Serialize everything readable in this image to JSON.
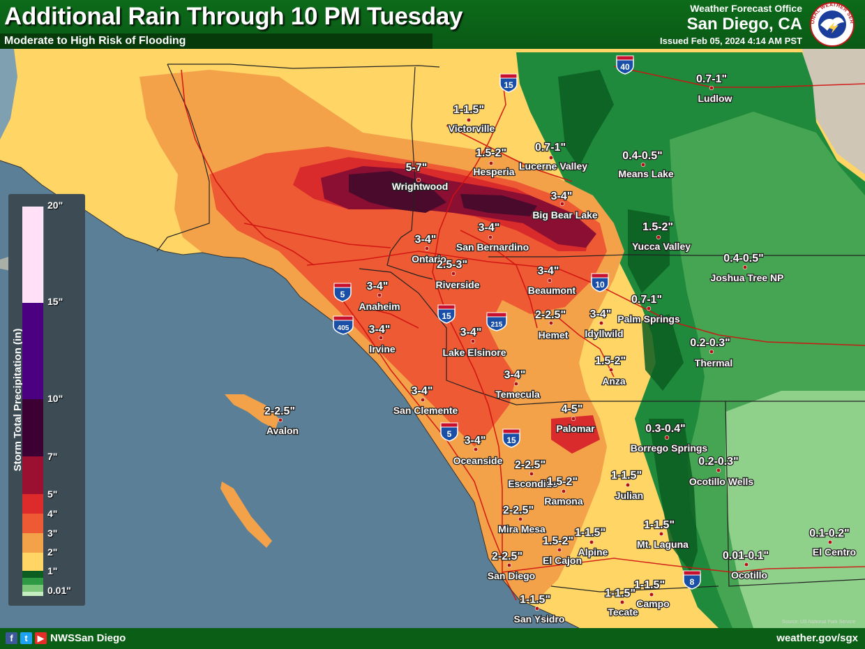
{
  "header": {
    "title": "Additional Rain Through 10 PM Tuesday",
    "subtitle": "Moderate to High Risk of Flooding",
    "office_label": "Weather Forecast Office",
    "office_name": "San Diego, CA",
    "issued": "Issued Feb 05, 2024 4:14 AM PST",
    "logo_text": "NATIONAL WEATHER SERVICE"
  },
  "legend": {
    "title": "Storm Total Precipitation (in)",
    "ticks": [
      "20\"",
      "15\"",
      "10\"",
      "7\"",
      "5\"",
      "4\"",
      "3\"",
      "2\"",
      "1\"",
      "0.01\""
    ],
    "colors": [
      "#4a8c4a",
      "#ffcc66",
      "#f4a24a",
      "#ee6a33",
      "#ef3b2c",
      "#c8102e",
      "#7d0e3a",
      "#3d0033",
      "#4b0082",
      "#ffd6f6"
    ]
  },
  "interstates": [
    "40",
    "15",
    "10",
    "5",
    "215",
    "15",
    "405",
    "5",
    "15",
    "8"
  ],
  "locations": [
    {
      "name": "Ludlow",
      "amount": "0.7-1\""
    },
    {
      "name": "Victorville",
      "amount": "1-1.5\""
    },
    {
      "name": "Hesperia",
      "amount": "1.5-2\""
    },
    {
      "name": "Lucerne Valley",
      "amount": "0.7-1\""
    },
    {
      "name": "Means Lake",
      "amount": "0.4-0.5\""
    },
    {
      "name": "Wrightwood",
      "amount": "5-7\""
    },
    {
      "name": "Big Bear Lake",
      "amount": "3-4\""
    },
    {
      "name": "San Bernardino",
      "amount": "3-4\""
    },
    {
      "name": "Yucca Valley",
      "amount": "1.5-2\""
    },
    {
      "name": "Ontario",
      "amount": "3-4\""
    },
    {
      "name": "Riverside",
      "amount": "2.5-3\""
    },
    {
      "name": "Joshua Tree NP",
      "amount": "0.4-0.5\""
    },
    {
      "name": "Beaumont",
      "amount": "3-4\""
    },
    {
      "name": "Anaheim",
      "amount": "3-4\""
    },
    {
      "name": "Palm Springs",
      "amount": "0.7-1\""
    },
    {
      "name": "Hemet",
      "amount": "2-2.5\""
    },
    {
      "name": "Idyllwild",
      "amount": "3-4\""
    },
    {
      "name": "Irvine",
      "amount": "3-4\""
    },
    {
      "name": "Lake Elsinore",
      "amount": "3-4\""
    },
    {
      "name": "Thermal",
      "amount": "0.2-0.3\""
    },
    {
      "name": "Anza",
      "amount": "1.5-2\""
    },
    {
      "name": "Temecula",
      "amount": "3-4\""
    },
    {
      "name": "San Clemente",
      "amount": "3-4\""
    },
    {
      "name": "Avalon",
      "amount": "2-2.5\""
    },
    {
      "name": "Palomar",
      "amount": "4-5\""
    },
    {
      "name": "Borrego Springs",
      "amount": "0.3-0.4\""
    },
    {
      "name": "Oceanside",
      "amount": "3-4\""
    },
    {
      "name": "Ocotillo Wells",
      "amount": "0.2-0.3\""
    },
    {
      "name": "Escondido",
      "amount": "2-2.5\""
    },
    {
      "name": "Ramona",
      "amount": "1.5-2\""
    },
    {
      "name": "Julian",
      "amount": "1-1.5\""
    },
    {
      "name": "Mira Mesa",
      "amount": "2-2.5\""
    },
    {
      "name": "Mt. Laguna",
      "amount": "1-1.5\""
    },
    {
      "name": "Alpine",
      "amount": "1-1.5\""
    },
    {
      "name": "El Cajon",
      "amount": "1.5-2\""
    },
    {
      "name": "El Centro",
      "amount": "0.1-0.2\""
    },
    {
      "name": "San Diego",
      "amount": "2-2.5\""
    },
    {
      "name": "Ocotillo",
      "amount": "0.01-0.1\""
    },
    {
      "name": "Campo",
      "amount": "1-1.5\""
    },
    {
      "name": "Tecate",
      "amount": "1-1.5\""
    },
    {
      "name": "San Ysidro",
      "amount": "1-1.5\""
    }
  ],
  "footer": {
    "social_handle": "NWSSan Diego",
    "website": "weather.gov/sgx",
    "source_note": "Source: US National Park Service"
  }
}
